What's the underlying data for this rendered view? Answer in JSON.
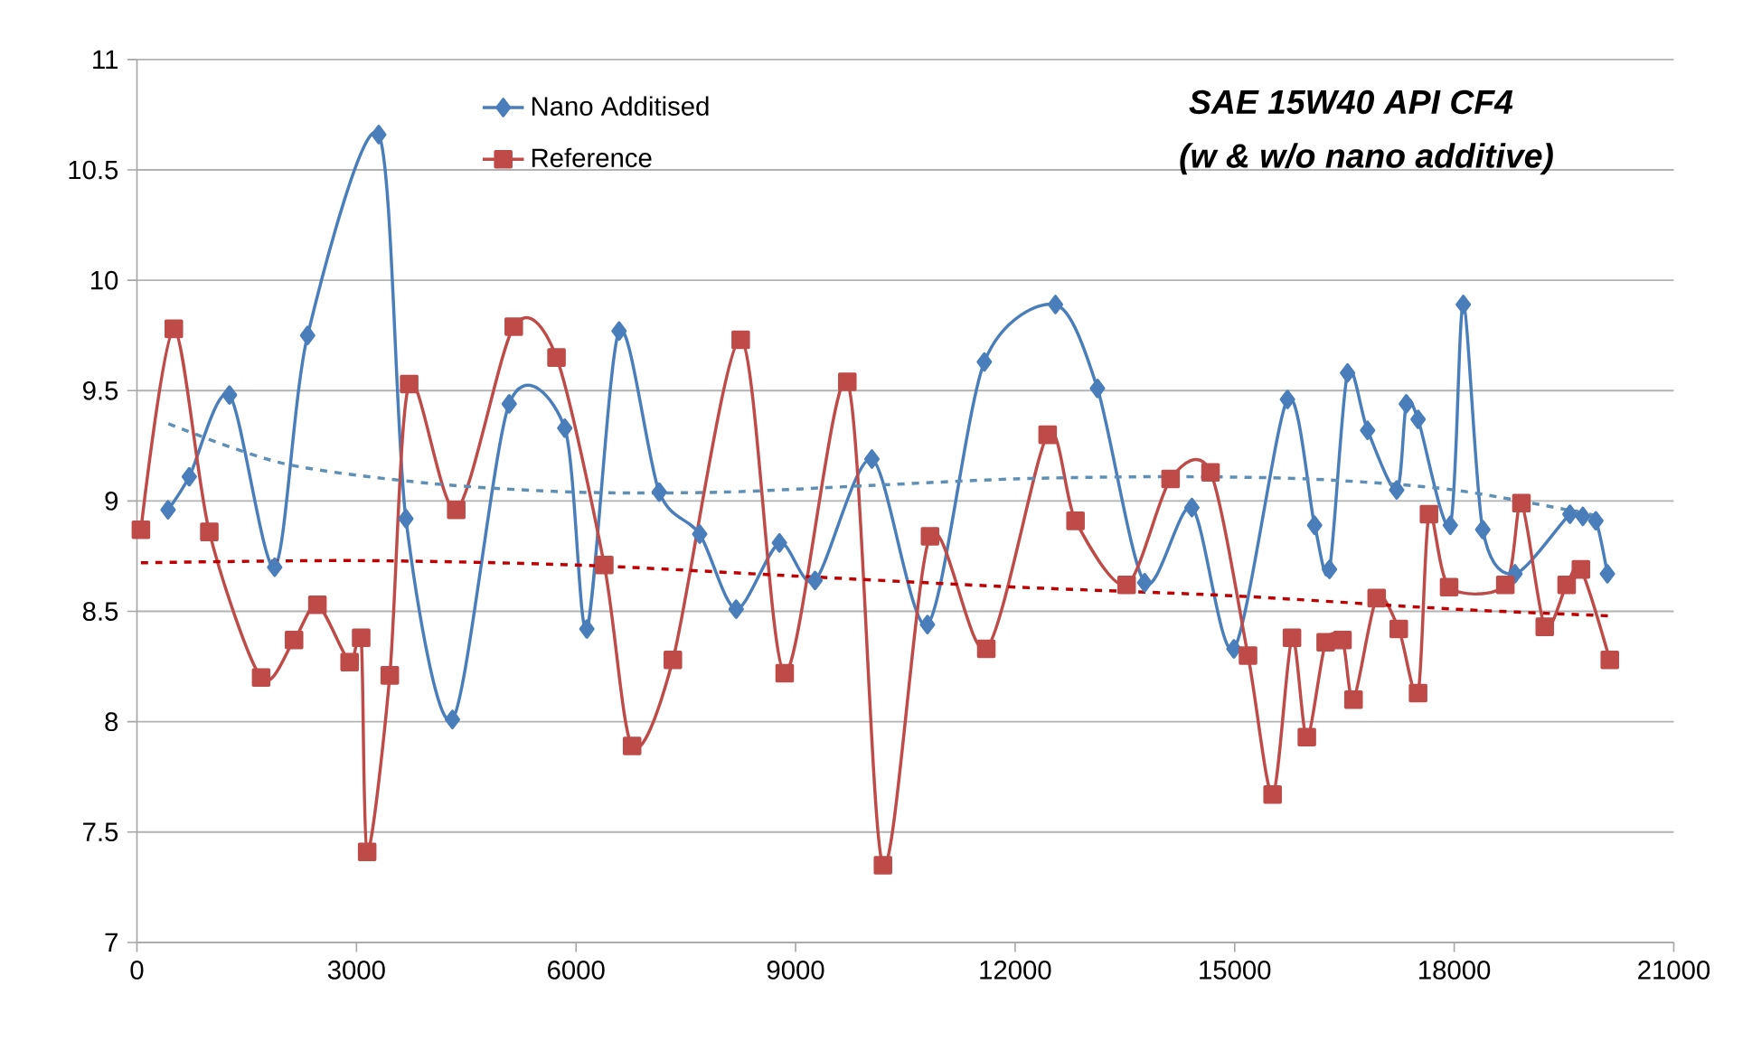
{
  "chart_data": {
    "type": "line",
    "title": "SAE  15W40  API CF4",
    "subtitle": "(w & w/o nano additive)",
    "xlim": [
      0,
      21000
    ],
    "xticks": [
      0,
      3000,
      6000,
      9000,
      12000,
      15000,
      18000,
      21000
    ],
    "ylim": [
      7,
      11
    ],
    "yticks": [
      7,
      7.5,
      8,
      8.5,
      9,
      9.5,
      10,
      10.5,
      11
    ],
    "grid": "y",
    "legend": "top",
    "series": [
      {
        "name": "Nano Additised",
        "color": "#4a7ebb",
        "marker": "diamond",
        "line_style": "solid",
        "x": [
          425,
          715,
          1264,
          1882,
          2332,
          3304,
          3675,
          4311,
          5087,
          5846,
          6148,
          6588,
          7137,
          7690,
          8188,
          8779,
          9266,
          10043,
          10802,
          11579,
          12551,
          13125,
          13770,
          14415,
          14989,
          15721,
          16092,
          16295,
          16542,
          16816,
          17214,
          17345,
          17506,
          17946,
          18124,
          18390,
          18830,
          19581,
          19757,
          19935,
          20093
        ],
        "values": [
          8.96,
          9.11,
          9.48,
          8.7,
          9.75,
          10.66,
          8.92,
          8.01,
          9.44,
          9.33,
          8.42,
          9.77,
          9.04,
          8.85,
          8.51,
          8.81,
          8.64,
          9.19,
          8.44,
          9.63,
          9.89,
          9.51,
          8.63,
          8.97,
          8.33,
          9.46,
          8.89,
          8.69,
          9.58,
          9.32,
          9.05,
          9.44,
          9.37,
          8.89,
          9.89,
          8.87,
          8.67,
          8.94,
          8.93,
          8.91,
          8.67
        ]
      },
      {
        "name": "Reference",
        "color": "#be4b48",
        "marker": "square",
        "line_style": "solid",
        "x": [
          54,
          504,
          989,
          1697,
          2147,
          2466,
          2906,
          3064,
          3146,
          3455,
          3720,
          4363,
          5149,
          5733,
          6386,
          6766,
          7323,
          8250,
          8851,
          9707,
          10194,
          10837,
          11606,
          12444,
          12825,
          13523,
          14124,
          14670,
          15182,
          15518,
          15783,
          15986,
          16243,
          16473,
          16624,
          16940,
          17242,
          17506,
          17655,
          17930,
          18698,
          18918,
          19237,
          19536,
          19731,
          20126
        ],
        "values": [
          8.87,
          9.78,
          8.86,
          8.2,
          8.37,
          8.53,
          8.27,
          8.38,
          7.41,
          8.21,
          9.53,
          8.96,
          9.79,
          9.65,
          8.71,
          7.89,
          8.28,
          9.73,
          8.22,
          9.54,
          7.35,
          8.84,
          8.33,
          9.3,
          8.91,
          8.62,
          9.1,
          9.13,
          8.3,
          7.67,
          8.38,
          7.93,
          8.36,
          8.37,
          8.1,
          8.56,
          8.42,
          8.13,
          8.94,
          8.61,
          8.62,
          8.99,
          8.43,
          8.62,
          8.69,
          8.28
        ]
      },
      {
        "color": "#5f8fb4",
        "marker": "none",
        "line_style": "dashed",
        "x": [
          430,
          2000,
          4000,
          6000,
          8000,
          10000,
          12000,
          14000,
          16000,
          18000,
          20000
        ],
        "values": [
          9.35,
          9.17,
          9.08,
          9.04,
          9.04,
          9.07,
          9.1,
          9.11,
          9.1,
          9.05,
          8.93
        ]
      },
      {
        "color": "#c00000",
        "marker": "none",
        "line_style": "dashed",
        "x": [
          54,
          3000,
          6000,
          9000,
          12000,
          15000,
          18000,
          20100
        ],
        "values": [
          8.72,
          8.73,
          8.71,
          8.66,
          8.61,
          8.57,
          8.51,
          8.48
        ]
      }
    ]
  }
}
